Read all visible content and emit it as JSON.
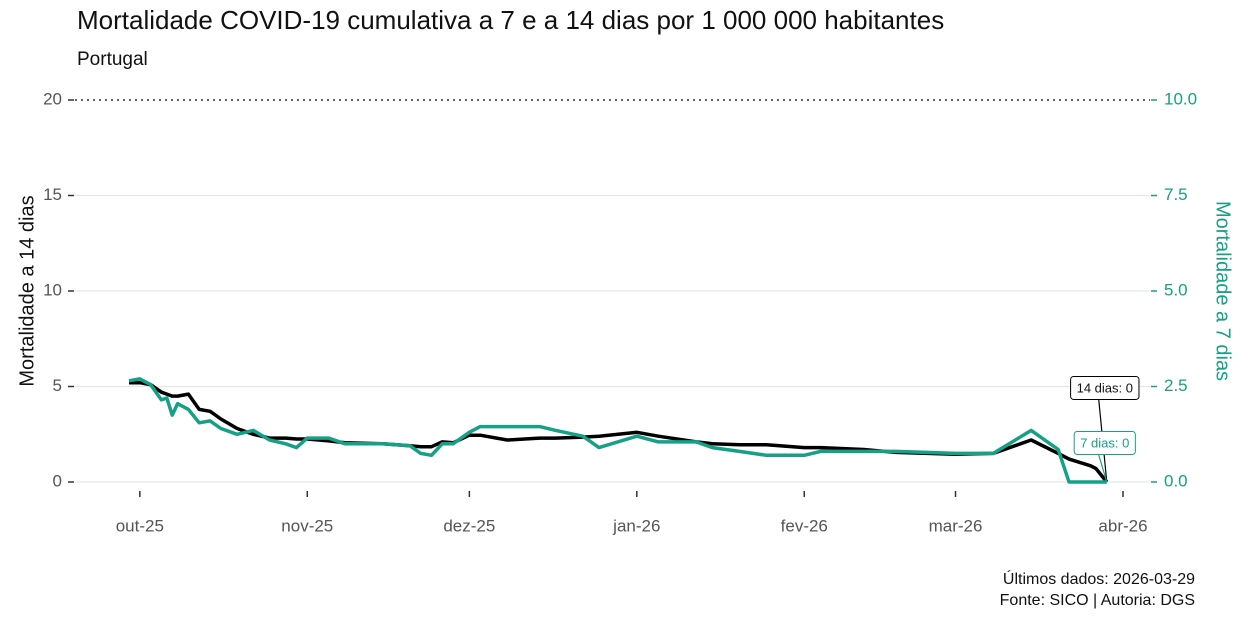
{
  "chart_data": {
    "type": "line",
    "title": "Mortalidade COVID-19 cumulativa a 7 e a 14 dias por 1 000 000 habitantes",
    "subtitle": "Portugal",
    "y_label": "Mortalidade a 14 dias",
    "y2_label": "Mortalidade a 7 dias",
    "captions": [
      "Últimos dados: 2026-03-29",
      "Fonte: SICO | Autoria: DGS"
    ],
    "x": [
      "2025-09-29",
      "2025-10-01",
      "2025-10-03",
      "2025-10-05",
      "2025-10-06",
      "2025-10-07",
      "2025-10-08",
      "2025-10-10",
      "2025-10-12",
      "2025-10-14",
      "2025-10-16",
      "2025-10-19",
      "2025-10-22",
      "2025-10-25",
      "2025-10-28",
      "2025-10-30",
      "2025-11-01",
      "2025-11-05",
      "2025-11-08",
      "2025-11-15",
      "2025-11-20",
      "2025-11-22",
      "2025-11-24",
      "2025-11-26",
      "2025-11-28",
      "2025-12-01",
      "2025-12-03",
      "2025-12-08",
      "2025-12-14",
      "2025-12-17",
      "2025-12-22",
      "2025-12-25",
      "2026-01-01",
      "2026-01-05",
      "2026-01-12",
      "2026-01-15",
      "2026-01-20",
      "2026-01-25",
      "2026-02-01",
      "2026-02-04",
      "2026-02-12",
      "2026-02-18",
      "2026-03-01",
      "2026-03-08",
      "2026-03-15",
      "2026-03-20",
      "2026-03-22",
      "2026-03-26",
      "2026-03-27",
      "2026-03-29"
    ],
    "series": [
      {
        "name": "14 dias",
        "color": "#000000",
        "axis": "y",
        "values": [
          5.2,
          5.2,
          5.1,
          4.7,
          4.6,
          4.5,
          4.5,
          4.6,
          3.8,
          3.7,
          3.3,
          2.8,
          2.5,
          2.3,
          2.3,
          2.25,
          2.25,
          2.15,
          2.05,
          2.0,
          1.9,
          1.85,
          1.85,
          2.1,
          2.05,
          2.45,
          2.45,
          2.2,
          2.3,
          2.3,
          2.35,
          2.4,
          2.6,
          2.4,
          2.1,
          2.0,
          1.95,
          1.95,
          1.8,
          1.8,
          1.7,
          1.55,
          1.45,
          1.5,
          2.2,
          1.5,
          1.2,
          0.85,
          0.7,
          0
        ]
      },
      {
        "name": "7 dias",
        "color": "#16a085",
        "axis": "y2",
        "values": [
          2.65,
          2.7,
          2.55,
          2.15,
          2.2,
          1.75,
          2.05,
          1.9,
          1.55,
          1.6,
          1.4,
          1.25,
          1.35,
          1.1,
          1.0,
          0.9,
          1.15,
          1.15,
          1.0,
          1.0,
          0.95,
          0.75,
          0.7,
          1.0,
          1.0,
          1.3,
          1.45,
          1.45,
          1.45,
          1.35,
          1.2,
          0.9,
          1.2,
          1.05,
          1.05,
          0.9,
          0.8,
          0.7,
          0.7,
          0.8,
          0.8,
          0.8,
          0.75,
          0.75,
          1.35,
          0.85,
          0,
          0,
          0,
          0
        ]
      }
    ],
    "annotations": [
      "14 dias: 0",
      "7 dias: 0"
    ],
    "xlim": [
      "2025-09-19",
      "2026-04-06"
    ],
    "xticks": [
      {
        "value": "2025-10-01",
        "label": "out-25"
      },
      {
        "value": "2025-11-01",
        "label": "nov-25"
      },
      {
        "value": "2025-12-01",
        "label": "dez-25"
      },
      {
        "value": "2026-01-01",
        "label": "jan-26"
      },
      {
        "value": "2026-02-01",
        "label": "fev-26"
      },
      {
        "value": "2026-03-01",
        "label": "mar-26"
      },
      {
        "value": "2026-04-01",
        "label": "abr-26"
      }
    ],
    "ylim": [
      0,
      20
    ],
    "yticks": [
      0,
      5,
      10,
      15,
      20
    ],
    "y2lim": [
      0,
      10
    ],
    "y2ticks": [
      {
        "value": 0,
        "label": "0.0"
      },
      {
        "value": 2.5,
        "label": "2.5"
      },
      {
        "value": 5,
        "label": "5.0"
      },
      {
        "value": 7.5,
        "label": "7.5"
      },
      {
        "value": 10,
        "label": "10.0"
      }
    ],
    "grid": true
  }
}
